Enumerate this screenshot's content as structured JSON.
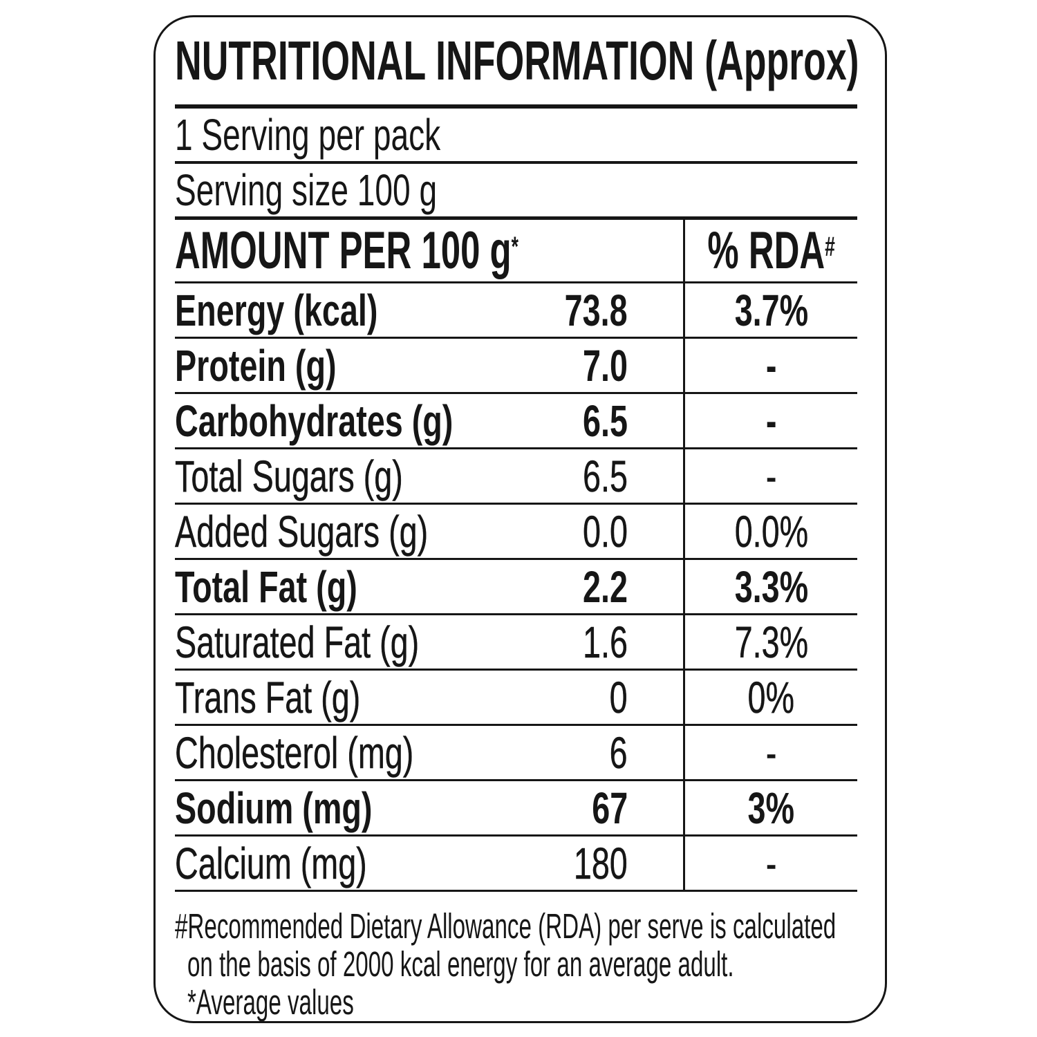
{
  "label": {
    "title": "NUTRITIONAL INFORMATION (Approx)",
    "servings_per_pack": "1 Serving per pack",
    "serving_size": "Serving size 100 g",
    "table": {
      "amount_header": "AMOUNT PER 100 g",
      "amount_header_sup": "*",
      "rda_header": "% RDA",
      "rda_header_sup": "#",
      "rows": [
        {
          "name": "Energy (kcal)",
          "amount": "73.8",
          "rda": "3.7%",
          "emphasis": "bold"
        },
        {
          "name": "Protein (g)",
          "amount": "7.0",
          "rda": "-",
          "emphasis": "bold"
        },
        {
          "name": "Carbohydrates (g)",
          "amount": "6.5",
          "rda": "-",
          "emphasis": "bold"
        },
        {
          "name": "Total Sugars (g)",
          "amount": "6.5",
          "rda": "-",
          "emphasis": "medium"
        },
        {
          "name": "Added Sugars (g)",
          "amount": "0.0",
          "rda": "0.0%",
          "emphasis": "medium"
        },
        {
          "name": "Total Fat (g)",
          "amount": "2.2",
          "rda": "3.3%",
          "emphasis": "bold"
        },
        {
          "name": "Saturated Fat (g)",
          "amount": "1.6",
          "rda": "7.3%",
          "emphasis": "medium"
        },
        {
          "name": "Trans Fat (g)",
          "amount": "0",
          "rda": "0%",
          "emphasis": "medium"
        },
        {
          "name": "Cholesterol (mg)",
          "amount": "6",
          "rda": "-",
          "emphasis": "medium"
        },
        {
          "name": "Sodium (mg)",
          "amount": "67",
          "rda": "3%",
          "emphasis": "bold"
        },
        {
          "name": "Calcium (mg)",
          "amount": "180",
          "rda": "-",
          "emphasis": "medium"
        }
      ]
    },
    "footnotes": [
      "#Recommended Dietary Allowance (RDA) per serve is calculated",
      "on the basis of 2000 kcal energy for an average adult.",
      "*Average values"
    ],
    "colors": {
      "text": "#161616",
      "line": "#161616",
      "background": "#ffffff"
    }
  }
}
